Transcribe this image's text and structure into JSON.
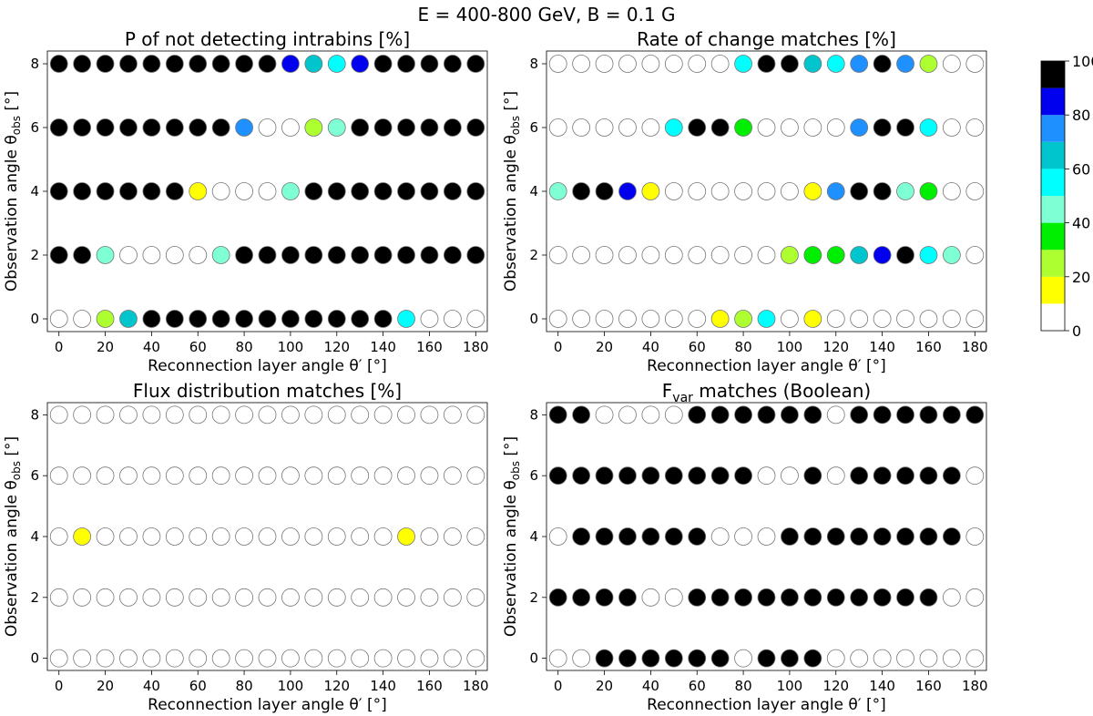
{
  "suptitle": "E = 400-800 GeV, B = 0.1 G",
  "colorbar": {
    "ticks": [
      0,
      20,
      40,
      60,
      80,
      100
    ],
    "bins": [
      {
        "from": 0,
        "to": 10,
        "color": "#ffffff"
      },
      {
        "from": 10,
        "to": 20,
        "color": "#ffff00"
      },
      {
        "from": 20,
        "to": 30,
        "color": "#adff2f"
      },
      {
        "from": 30,
        "to": 40,
        "color": "#00ee00"
      },
      {
        "from": 40,
        "to": 50,
        "color": "#7fffd4"
      },
      {
        "from": 50,
        "to": 60,
        "color": "#00ffff"
      },
      {
        "from": 60,
        "to": 70,
        "color": "#00c5cd"
      },
      {
        "from": 70,
        "to": 80,
        "color": "#1e90ff"
      },
      {
        "from": 80,
        "to": 90,
        "color": "#0000ee"
      },
      {
        "from": 90,
        "to": 100,
        "color": "#000000"
      }
    ]
  },
  "chart_data": [
    {
      "type": "scatter",
      "title": "P of not detecting intrabins [%]",
      "xlabel": "Reconnection layer angle θ′ [°]",
      "ylabel": "Observation angle θobs [°]",
      "x": [
        0,
        10,
        20,
        30,
        40,
        50,
        60,
        70,
        80,
        90,
        100,
        110,
        120,
        130,
        140,
        150,
        160,
        170,
        180
      ],
      "y": [
        0,
        2,
        4,
        6,
        8
      ],
      "xticks": [
        0,
        20,
        40,
        60,
        80,
        100,
        120,
        140,
        160,
        180
      ],
      "xlim": [
        -5,
        185
      ],
      "ylim": [
        -0.4,
        8.4
      ],
      "values": [
        [
          0,
          0,
          25,
          65,
          100,
          100,
          100,
          100,
          100,
          100,
          100,
          100,
          100,
          100,
          100,
          55,
          0,
          0,
          0
        ],
        [
          100,
          100,
          45,
          0,
          0,
          0,
          0,
          45,
          100,
          100,
          100,
          100,
          100,
          100,
          100,
          100,
          100,
          100,
          100
        ],
        [
          100,
          100,
          100,
          100,
          100,
          100,
          15,
          0,
          0,
          0,
          45,
          100,
          100,
          100,
          100,
          100,
          100,
          100,
          100
        ],
        [
          100,
          100,
          100,
          100,
          100,
          100,
          100,
          100,
          75,
          0,
          0,
          25,
          45,
          100,
          100,
          100,
          100,
          100,
          100
        ],
        [
          100,
          100,
          100,
          100,
          100,
          100,
          100,
          100,
          100,
          100,
          85,
          65,
          55,
          85,
          100,
          100,
          100,
          100,
          100
        ]
      ]
    },
    {
      "type": "scatter",
      "title": "Rate of change matches [%]",
      "xlabel": "Reconnection layer angle θ′ [°]",
      "ylabel": "Observation angle θobs [°]",
      "x": [
        0,
        10,
        20,
        30,
        40,
        50,
        60,
        70,
        80,
        90,
        100,
        110,
        120,
        130,
        140,
        150,
        160,
        170,
        180
      ],
      "y": [
        0,
        2,
        4,
        6,
        8
      ],
      "xticks": [
        0,
        20,
        40,
        60,
        80,
        100,
        120,
        140,
        160,
        180
      ],
      "xlim": [
        -5,
        185
      ],
      "ylim": [
        -0.4,
        8.4
      ],
      "values": [
        [
          0,
          0,
          0,
          0,
          0,
          0,
          0,
          15,
          25,
          55,
          0,
          15,
          0,
          0,
          0,
          0,
          0,
          0,
          0
        ],
        [
          0,
          0,
          0,
          0,
          0,
          0,
          0,
          0,
          0,
          0,
          25,
          35,
          35,
          65,
          85,
          100,
          55,
          45,
          0
        ],
        [
          45,
          100,
          100,
          85,
          15,
          0,
          0,
          0,
          0,
          0,
          0,
          15,
          75,
          100,
          100,
          45,
          35,
          0,
          0
        ],
        [
          0,
          0,
          0,
          0,
          0,
          55,
          100,
          100,
          35,
          0,
          0,
          0,
          0,
          75,
          100,
          100,
          55,
          0,
          0
        ],
        [
          0,
          0,
          0,
          0,
          0,
          0,
          0,
          0,
          55,
          100,
          100,
          65,
          55,
          75,
          100,
          75,
          25,
          0,
          0
        ]
      ]
    },
    {
      "type": "scatter",
      "title": "Flux distribution matches [%]",
      "xlabel": "Reconnection layer angle θ′ [°]",
      "ylabel": "Observation angle θobs [°]",
      "x": [
        0,
        10,
        20,
        30,
        40,
        50,
        60,
        70,
        80,
        90,
        100,
        110,
        120,
        130,
        140,
        150,
        160,
        170,
        180
      ],
      "y": [
        0,
        2,
        4,
        6,
        8
      ],
      "xticks": [
        0,
        20,
        40,
        60,
        80,
        100,
        120,
        140,
        160,
        180
      ],
      "xlim": [
        -5,
        185
      ],
      "ylim": [
        -0.4,
        8.4
      ],
      "values": [
        [
          0,
          0,
          0,
          0,
          0,
          0,
          0,
          0,
          0,
          0,
          0,
          0,
          0,
          0,
          0,
          0,
          0,
          0,
          0
        ],
        [
          0,
          0,
          0,
          0,
          0,
          0,
          0,
          0,
          0,
          0,
          0,
          0,
          0,
          0,
          0,
          0,
          0,
          0,
          0
        ],
        [
          0,
          15,
          0,
          0,
          0,
          0,
          0,
          0,
          0,
          0,
          0,
          0,
          0,
          0,
          0,
          15,
          0,
          0,
          0
        ],
        [
          0,
          0,
          0,
          0,
          0,
          0,
          0,
          0,
          0,
          0,
          0,
          0,
          0,
          0,
          0,
          0,
          0,
          0,
          0
        ],
        [
          0,
          0,
          0,
          0,
          0,
          0,
          0,
          0,
          0,
          0,
          0,
          0,
          0,
          0,
          0,
          0,
          0,
          0,
          0
        ]
      ]
    },
    {
      "type": "scatter",
      "title": "Fvar matches (Boolean)",
      "xlabel": "Reconnection layer angle θ′ [°]",
      "ylabel": "Observation angle θobs [°]",
      "x": [
        0,
        10,
        20,
        30,
        40,
        50,
        60,
        70,
        80,
        90,
        100,
        110,
        120,
        130,
        140,
        150,
        160,
        170,
        180
      ],
      "y": [
        0,
        2,
        4,
        6,
        8
      ],
      "xticks": [
        0,
        20,
        40,
        60,
        80,
        100,
        120,
        140,
        160,
        180
      ],
      "xlim": [
        -5,
        185
      ],
      "ylim": [
        -0.4,
        8.4
      ],
      "values": [
        [
          0,
          0,
          100,
          100,
          100,
          100,
          100,
          100,
          0,
          100,
          100,
          100,
          0,
          0,
          0,
          0,
          0,
          0,
          0
        ],
        [
          100,
          100,
          100,
          100,
          0,
          0,
          100,
          100,
          100,
          100,
          100,
          100,
          100,
          100,
          100,
          100,
          100,
          0,
          0
        ],
        [
          0,
          100,
          100,
          100,
          100,
          100,
          100,
          0,
          0,
          0,
          100,
          100,
          100,
          100,
          100,
          100,
          100,
          100,
          0
        ],
        [
          100,
          100,
          100,
          100,
          100,
          100,
          100,
          100,
          100,
          0,
          0,
          100,
          0,
          100,
          100,
          100,
          100,
          100,
          0
        ],
        [
          100,
          100,
          0,
          0,
          0,
          0,
          100,
          100,
          100,
          100,
          100,
          100,
          0,
          100,
          100,
          100,
          100,
          100,
          100
        ]
      ]
    }
  ]
}
